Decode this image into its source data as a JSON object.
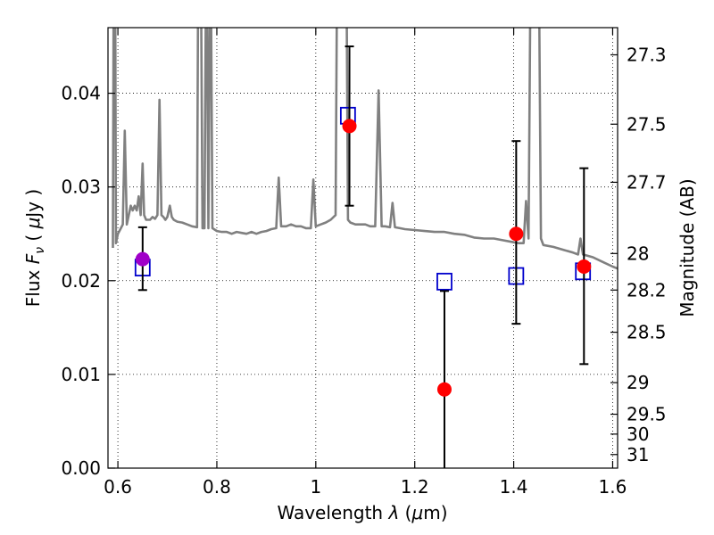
{
  "chart_data": {
    "type": "scatter",
    "xlabel_prefix": "Wavelength  ",
    "xlabel_symbol": "λ",
    "xlabel_unit_open": " (",
    "xlabel_unit_mu": "μ",
    "xlabel_unit_close": "m)",
    "ylabel_prefix": "Flux  ",
    "ylabel_symbol": "F",
    "ylabel_subscript": "ν",
    "ylabel_unit_open": "  ( ",
    "ylabel_unit_mu": "μ",
    "ylabel_unit_close": "Jy )",
    "y2label": "Magnitude (AB)",
    "xlim": [
      0.58,
      1.61
    ],
    "ylim": [
      0.0,
      0.047
    ],
    "grid": true,
    "x_ticks": [
      {
        "value": 0.6,
        "label": "0.6"
      },
      {
        "value": 0.8,
        "label": "0.8"
      },
      {
        "value": 1.0,
        "label": "1"
      },
      {
        "value": 1.2,
        "label": "1.2"
      },
      {
        "value": 1.4,
        "label": "1.4"
      },
      {
        "value": 1.6,
        "label": "1.6"
      }
    ],
    "y_ticks": [
      {
        "value": 0.0,
        "label": "0.00"
      },
      {
        "value": 0.01,
        "label": "0.01"
      },
      {
        "value": 0.02,
        "label": "0.02"
      },
      {
        "value": 0.03,
        "label": "0.03"
      },
      {
        "value": 0.04,
        "label": "0.04"
      }
    ],
    "y2_ticks": [
      {
        "flux": 0.0441,
        "label": "27.3"
      },
      {
        "flux": 0.0367,
        "label": "27.5"
      },
      {
        "flux": 0.0305,
        "label": "27.7"
      },
      {
        "flux": 0.0229,
        "label": "28"
      },
      {
        "flux": 0.019,
        "label": "28.2"
      },
      {
        "flux": 0.0145,
        "label": "28.5"
      },
      {
        "flux": 0.00912,
        "label": "29"
      },
      {
        "flux": 0.00575,
        "label": "29.5"
      },
      {
        "flux": 0.00363,
        "label": "30"
      },
      {
        "flux": 0.00145,
        "label": "31"
      }
    ],
    "series": [
      {
        "role": "model-spectrum",
        "color": "#808080",
        "points": [
          [
            0.59,
            0.0235
          ],
          [
            0.593,
            0.08
          ],
          [
            0.596,
            0.024
          ],
          [
            0.6,
            0.025
          ],
          [
            0.605,
            0.0255
          ],
          [
            0.61,
            0.026
          ],
          [
            0.614,
            0.036
          ],
          [
            0.618,
            0.026
          ],
          [
            0.622,
            0.027
          ],
          [
            0.626,
            0.028
          ],
          [
            0.63,
            0.0275
          ],
          [
            0.634,
            0.028
          ],
          [
            0.638,
            0.0275
          ],
          [
            0.642,
            0.029
          ],
          [
            0.646,
            0.027
          ],
          [
            0.65,
            0.0325
          ],
          [
            0.653,
            0.027
          ],
          [
            0.657,
            0.0265
          ],
          [
            0.66,
            0.0265
          ],
          [
            0.665,
            0.0265
          ],
          [
            0.67,
            0.0268
          ],
          [
            0.675,
            0.0266
          ],
          [
            0.68,
            0.027
          ],
          [
            0.684,
            0.0393
          ],
          [
            0.688,
            0.027
          ],
          [
            0.692,
            0.0268
          ],
          [
            0.696,
            0.0265
          ],
          [
            0.7,
            0.0268
          ],
          [
            0.705,
            0.028
          ],
          [
            0.709,
            0.0268
          ],
          [
            0.713,
            0.0265
          ],
          [
            0.72,
            0.0263
          ],
          [
            0.73,
            0.0262
          ],
          [
            0.74,
            0.026
          ],
          [
            0.75,
            0.0258
          ],
          [
            0.76,
            0.0257
          ],
          [
            0.763,
            0.06
          ],
          [
            0.767,
            0.06
          ],
          [
            0.771,
            0.0256
          ],
          [
            0.775,
            0.0256
          ],
          [
            0.779,
            0.06
          ],
          [
            0.783,
            0.0256
          ],
          [
            0.787,
            0.06
          ],
          [
            0.791,
            0.0256
          ],
          [
            0.8,
            0.0253
          ],
          [
            0.81,
            0.0252
          ],
          [
            0.82,
            0.0252
          ],
          [
            0.83,
            0.025
          ],
          [
            0.84,
            0.0252
          ],
          [
            0.85,
            0.0251
          ],
          [
            0.86,
            0.025
          ],
          [
            0.87,
            0.0252
          ],
          [
            0.88,
            0.025
          ],
          [
            0.89,
            0.0252
          ],
          [
            0.9,
            0.0253
          ],
          [
            0.91,
            0.0255
          ],
          [
            0.92,
            0.0256
          ],
          [
            0.925,
            0.031
          ],
          [
            0.93,
            0.0258
          ],
          [
            0.94,
            0.0258
          ],
          [
            0.95,
            0.026
          ],
          [
            0.96,
            0.0258
          ],
          [
            0.97,
            0.0258
          ],
          [
            0.98,
            0.0256
          ],
          [
            0.99,
            0.0256
          ],
          [
            0.995,
            0.0308
          ],
          [
            1.0,
            0.0258
          ],
          [
            1.01,
            0.026
          ],
          [
            1.02,
            0.0262
          ],
          [
            1.03,
            0.0265
          ],
          [
            1.04,
            0.027
          ],
          [
            1.045,
            0.07
          ],
          [
            1.06,
            0.07
          ],
          [
            1.065,
            0.0265
          ],
          [
            1.07,
            0.0262
          ],
          [
            1.08,
            0.026
          ],
          [
            1.09,
            0.026
          ],
          [
            1.1,
            0.026
          ],
          [
            1.11,
            0.0258
          ],
          [
            1.12,
            0.0258
          ],
          [
            1.127,
            0.0403
          ],
          [
            1.133,
            0.0258
          ],
          [
            1.14,
            0.0258
          ],
          [
            1.15,
            0.0257
          ],
          [
            1.155,
            0.0283
          ],
          [
            1.16,
            0.0257
          ],
          [
            1.17,
            0.0256
          ],
          [
            1.18,
            0.0255
          ],
          [
            1.2,
            0.0254
          ],
          [
            1.22,
            0.0253
          ],
          [
            1.24,
            0.0252
          ],
          [
            1.26,
            0.0252
          ],
          [
            1.28,
            0.025
          ],
          [
            1.3,
            0.0249
          ],
          [
            1.32,
            0.0246
          ],
          [
            1.34,
            0.0245
          ],
          [
            1.36,
            0.0245
          ],
          [
            1.38,
            0.0243
          ],
          [
            1.4,
            0.0241
          ],
          [
            1.41,
            0.024
          ],
          [
            1.42,
            0.024
          ],
          [
            1.425,
            0.0285
          ],
          [
            1.43,
            0.0245
          ],
          [
            1.435,
            0.06
          ],
          [
            1.45,
            0.06
          ],
          [
            1.455,
            0.0245
          ],
          [
            1.46,
            0.0238
          ],
          [
            1.48,
            0.0236
          ],
          [
            1.5,
            0.0233
          ],
          [
            1.52,
            0.023
          ],
          [
            1.53,
            0.0228
          ],
          [
            1.535,
            0.0245
          ],
          [
            1.54,
            0.0228
          ],
          [
            1.56,
            0.0225
          ],
          [
            1.58,
            0.022
          ],
          [
            1.6,
            0.0215
          ],
          [
            1.61,
            0.0213
          ]
        ]
      },
      {
        "role": "model-synthetic-photometry",
        "color": "#0000cc",
        "marker": "open-square",
        "points": [
          [
            0.65,
            0.0214
          ],
          [
            1.065,
            0.0376
          ],
          [
            1.26,
            0.0199
          ],
          [
            1.405,
            0.0205
          ],
          [
            1.54,
            0.021
          ]
        ]
      },
      {
        "role": "observed-photometry",
        "color": "#ff0000",
        "marker": "filled-circle",
        "points": [
          {
            "x": 1.068,
            "y": 0.0365,
            "err_low": 0.028,
            "err_high": 0.045
          },
          {
            "x": 1.26,
            "y": 0.0084,
            "err_low": 0.0,
            "err_high": 0.0189
          },
          {
            "x": 1.405,
            "y": 0.025,
            "err_low": 0.0154,
            "err_high": 0.0349
          },
          {
            "x": 1.542,
            "y": 0.0215,
            "err_low": 0.0111,
            "err_high": 0.032
          }
        ]
      },
      {
        "role": "observed-photometry-optical",
        "color": "#a000c8",
        "marker": "filled-circle",
        "points": [
          {
            "x": 0.65,
            "y": 0.0223,
            "err_low": 0.019,
            "err_high": 0.0257
          }
        ]
      }
    ]
  }
}
